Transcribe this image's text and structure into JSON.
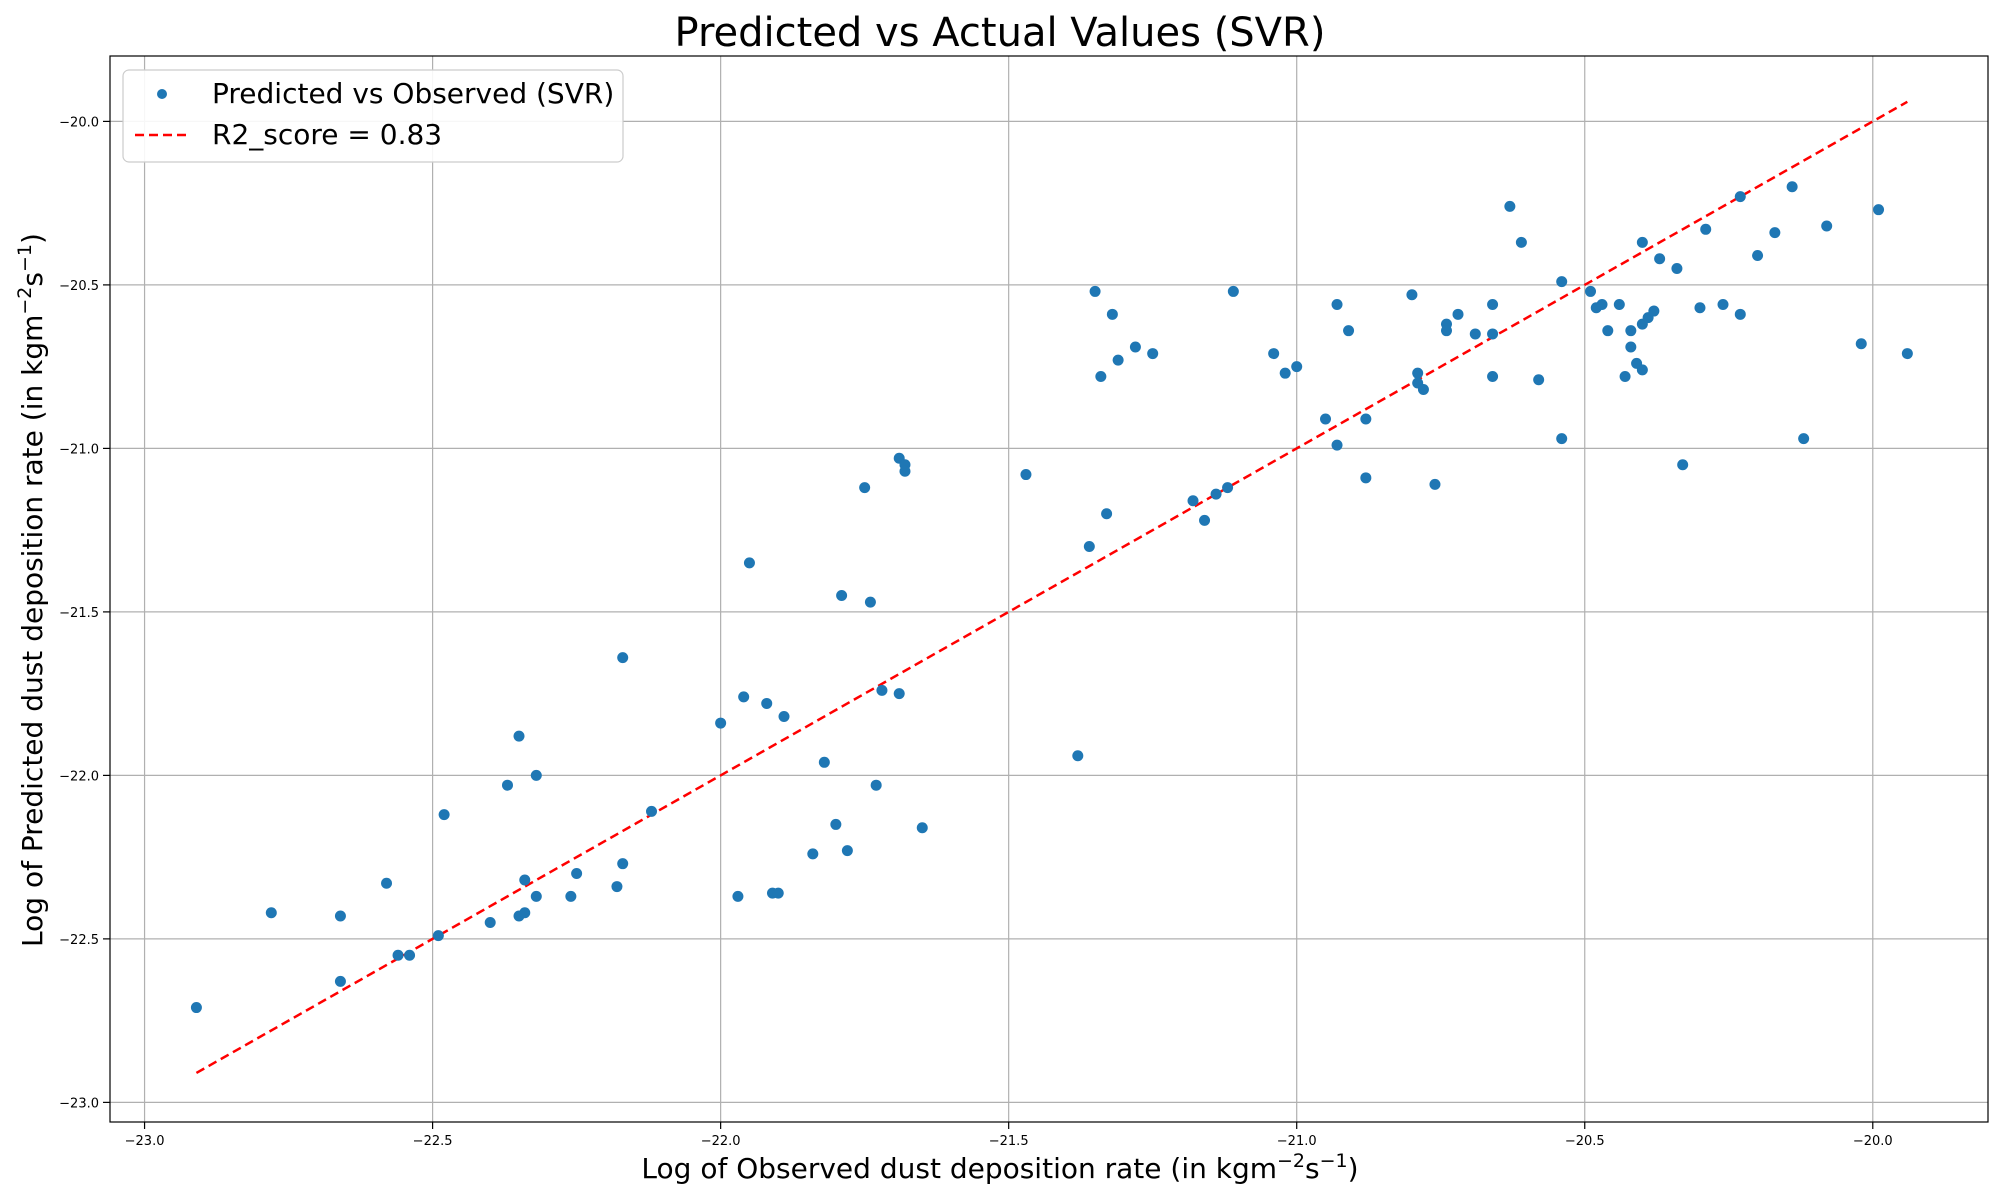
{
  "chart_data": {
    "type": "scatter",
    "title": "Predicted vs Actual Values (SVR)",
    "xlabel": {
      "text": "Log of Observed dust deposition rate (in kgm",
      "sup1": "−2",
      "mid": "s",
      "sup2": "−1",
      "end": ")"
    },
    "ylabel": {
      "text": "Log of Predicted dust deposition rate (in kgm",
      "sup1": "−2",
      "mid": "s",
      "sup2": "−1",
      "end": ")"
    },
    "xlim": [
      -23.06,
      -19.8
    ],
    "ylim": [
      -23.06,
      -19.8
    ],
    "xticks": [
      -23.0,
      -22.5,
      -22.0,
      -21.5,
      -21.0,
      -20.5,
      -20.0
    ],
    "yticks": [
      -23.0,
      -22.5,
      -22.0,
      -21.5,
      -21.0,
      -20.5,
      -20.0
    ],
    "xtick_labels": [
      "−23.0",
      "−22.5",
      "−22.0",
      "−21.5",
      "−21.0",
      "−20.5",
      "−20.0"
    ],
    "ytick_labels": [
      "−23.0",
      "−22.5",
      "−22.0",
      "−21.5",
      "−21.0",
      "−20.5",
      "−20.0"
    ],
    "grid": true,
    "legend_position": "top-left",
    "colors": {
      "points": "#1f77b4",
      "fit_line": "#ff0000"
    },
    "series": [
      {
        "name": "Predicted vs Observed (SVR)",
        "kind": "scatter",
        "points": [
          [
            -22.91,
            -22.71
          ],
          [
            -22.78,
            -22.42
          ],
          [
            -22.66,
            -22.43
          ],
          [
            -22.66,
            -22.63
          ],
          [
            -22.58,
            -22.33
          ],
          [
            -22.56,
            -22.55
          ],
          [
            -22.54,
            -22.55
          ],
          [
            -22.49,
            -22.49
          ],
          [
            -22.48,
            -22.12
          ],
          [
            -22.4,
            -22.45
          ],
          [
            -22.37,
            -22.03
          ],
          [
            -22.35,
            -22.43
          ],
          [
            -22.35,
            -21.88
          ],
          [
            -22.34,
            -22.42
          ],
          [
            -22.34,
            -22.32
          ],
          [
            -22.32,
            -22.0
          ],
          [
            -22.32,
            -22.37
          ],
          [
            -22.25,
            -22.3
          ],
          [
            -22.26,
            -22.37
          ],
          [
            -22.18,
            -22.34
          ],
          [
            -22.17,
            -22.27
          ],
          [
            -22.17,
            -21.64
          ],
          [
            -22.12,
            -22.11
          ],
          [
            -22.0,
            -21.84
          ],
          [
            -21.97,
            -22.37
          ],
          [
            -21.96,
            -21.76
          ],
          [
            -21.95,
            -21.35
          ],
          [
            -21.92,
            -21.78
          ],
          [
            -21.91,
            -22.36
          ],
          [
            -21.9,
            -22.36
          ],
          [
            -21.89,
            -21.82
          ],
          [
            -21.84,
            -22.24
          ],
          [
            -21.82,
            -21.96
          ],
          [
            -21.8,
            -22.15
          ],
          [
            -21.79,
            -21.45
          ],
          [
            -21.78,
            -22.23
          ],
          [
            -21.75,
            -21.12
          ],
          [
            -21.74,
            -21.47
          ],
          [
            -21.73,
            -22.03
          ],
          [
            -21.72,
            -21.74
          ],
          [
            -21.69,
            -21.75
          ],
          [
            -21.69,
            -21.03
          ],
          [
            -21.68,
            -21.05
          ],
          [
            -21.68,
            -21.07
          ],
          [
            -21.65,
            -22.16
          ],
          [
            -21.47,
            -21.08
          ],
          [
            -21.38,
            -21.94
          ],
          [
            -21.36,
            -21.3
          ],
          [
            -21.35,
            -20.52
          ],
          [
            -21.34,
            -20.78
          ],
          [
            -21.33,
            -21.2
          ],
          [
            -21.32,
            -20.59
          ],
          [
            -21.31,
            -20.73
          ],
          [
            -21.28,
            -20.69
          ],
          [
            -21.25,
            -20.71
          ],
          [
            -21.18,
            -21.16
          ],
          [
            -21.16,
            -21.22
          ],
          [
            -21.14,
            -21.14
          ],
          [
            -21.12,
            -21.12
          ],
          [
            -21.11,
            -20.52
          ],
          [
            -21.04,
            -20.71
          ],
          [
            -21.02,
            -20.77
          ],
          [
            -21.0,
            -20.75
          ],
          [
            -20.95,
            -20.91
          ],
          [
            -20.93,
            -20.56
          ],
          [
            -20.93,
            -20.99
          ],
          [
            -20.91,
            -20.64
          ],
          [
            -20.88,
            -20.91
          ],
          [
            -20.88,
            -21.09
          ],
          [
            -20.8,
            -20.53
          ],
          [
            -20.79,
            -20.77
          ],
          [
            -20.79,
            -20.8
          ],
          [
            -20.78,
            -20.82
          ],
          [
            -20.76,
            -21.11
          ],
          [
            -20.74,
            -20.62
          ],
          [
            -20.74,
            -20.64
          ],
          [
            -20.72,
            -20.59
          ],
          [
            -20.69,
            -20.65
          ],
          [
            -20.66,
            -20.65
          ],
          [
            -20.66,
            -20.56
          ],
          [
            -20.66,
            -20.78
          ],
          [
            -20.63,
            -20.26
          ],
          [
            -20.61,
            -20.37
          ],
          [
            -20.58,
            -20.79
          ],
          [
            -20.54,
            -20.97
          ],
          [
            -20.54,
            -20.49
          ],
          [
            -20.49,
            -20.52
          ],
          [
            -20.48,
            -20.57
          ],
          [
            -20.47,
            -20.56
          ],
          [
            -20.46,
            -20.64
          ],
          [
            -20.44,
            -20.56
          ],
          [
            -20.43,
            -20.78
          ],
          [
            -20.42,
            -20.64
          ],
          [
            -20.42,
            -20.69
          ],
          [
            -20.41,
            -20.74
          ],
          [
            -20.4,
            -20.62
          ],
          [
            -20.4,
            -20.76
          ],
          [
            -20.4,
            -20.37
          ],
          [
            -20.39,
            -20.6
          ],
          [
            -20.38,
            -20.58
          ],
          [
            -20.37,
            -20.42
          ],
          [
            -20.34,
            -20.45
          ],
          [
            -20.33,
            -21.05
          ],
          [
            -20.3,
            -20.57
          ],
          [
            -20.29,
            -20.33
          ],
          [
            -20.26,
            -20.56
          ],
          [
            -20.23,
            -20.59
          ],
          [
            -20.23,
            -20.23
          ],
          [
            -20.2,
            -20.41
          ],
          [
            -20.17,
            -20.34
          ],
          [
            -20.14,
            -20.2
          ],
          [
            -20.12,
            -20.97
          ],
          [
            -20.08,
            -20.32
          ],
          [
            -20.02,
            -20.68
          ],
          [
            -19.99,
            -20.27
          ],
          [
            -19.94,
            -20.71
          ]
        ]
      },
      {
        "name": "R2_score = 0.83",
        "kind": "line",
        "points": [
          [
            -22.91,
            -22.91
          ],
          [
            -19.94,
            -19.94
          ]
        ]
      }
    ]
  }
}
